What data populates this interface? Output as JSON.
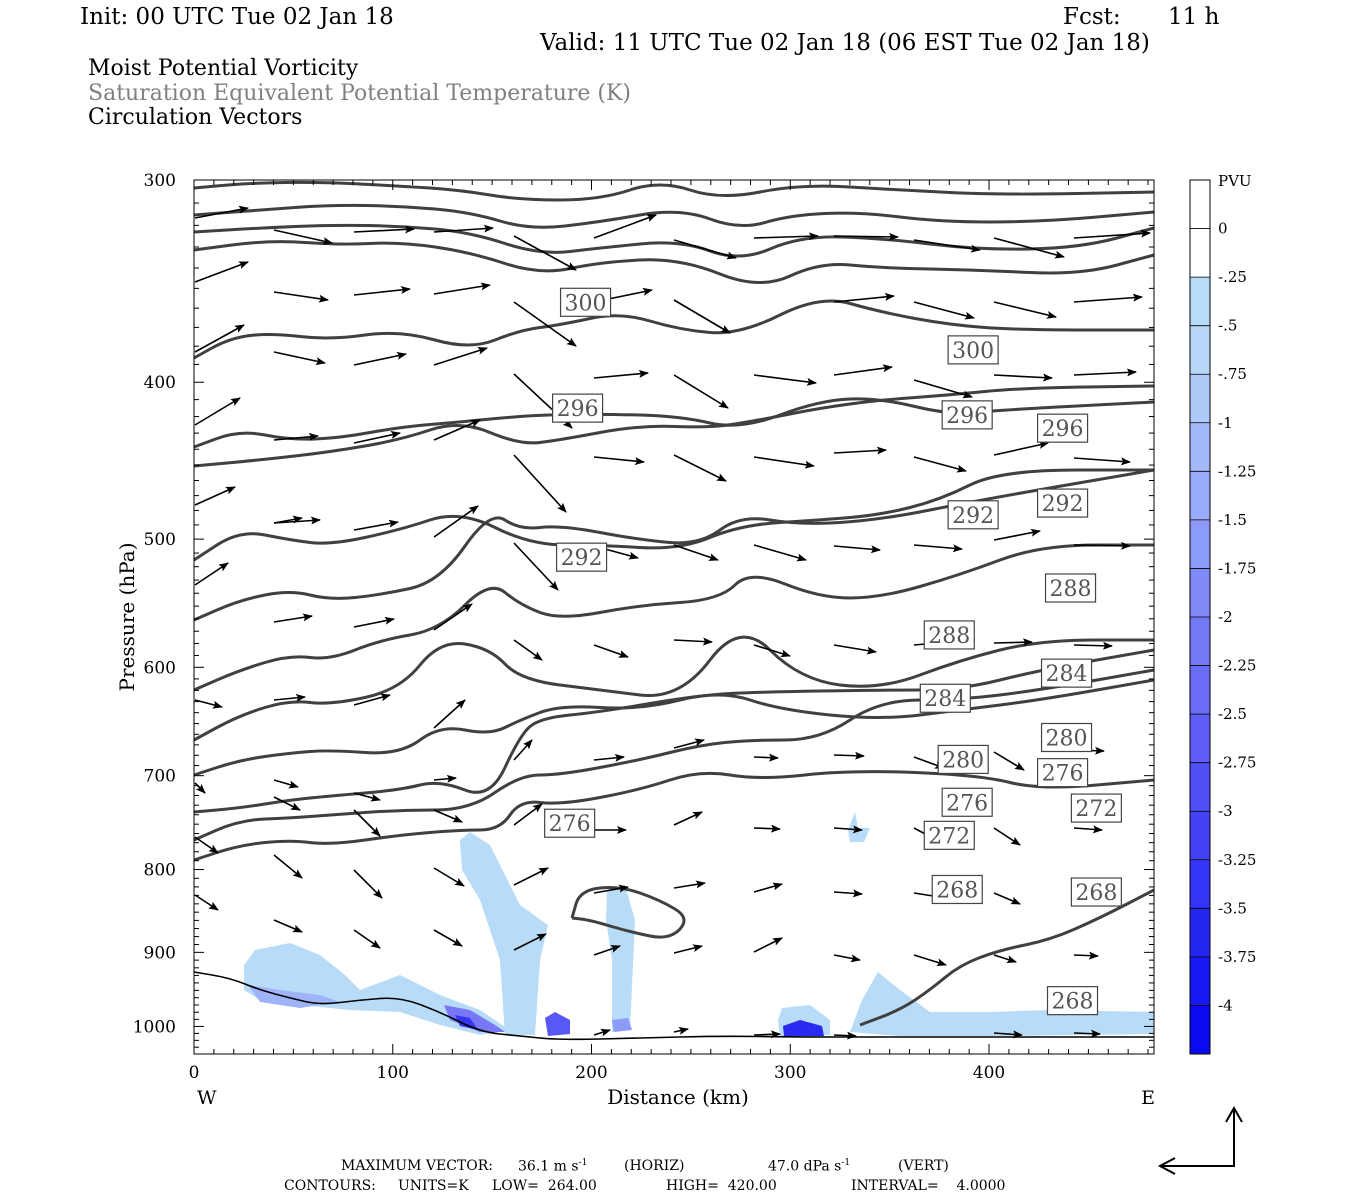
{
  "header": {
    "init": "Init: 00 UTC Tue 02 Jan 18",
    "fcst_label": "Fcst:",
    "fcst_value": "11 h",
    "valid": "Valid: 11 UTC Tue 02 Jan 18 (06 EST Tue 02 Jan 18)"
  },
  "fields": {
    "line1": "Moist Potential Vorticity",
    "line2": "Saturation Equivalent Potential Temperature (K)",
    "line3": "Circulation Vectors"
  },
  "colors": {
    "contour": "#404040",
    "pv_light": "#b8dcf8",
    "pv_dark": "#0a0af0"
  },
  "chart_data": {
    "type": "cross-section",
    "xlabel": "Distance (km)",
    "ylabel": "Pressure (hPa)",
    "x_ticks": [
      "0",
      "100",
      "200",
      "300",
      "400"
    ],
    "y_ticks": [
      "300",
      "400",
      "500",
      "600",
      "700",
      "800",
      "900",
      "1000"
    ],
    "xlim": [
      0,
      483
    ],
    "ylim": [
      300,
      1040
    ],
    "y_scale": "log",
    "west_label": "W",
    "east_label": "E",
    "colorbar": {
      "title": "PVU",
      "labels": [
        "0",
        "-.25",
        "-.5",
        "-.75",
        "-1",
        "-1.25",
        "-1.5",
        "-1.75",
        "-2",
        "-2.25",
        "-2.5",
        "-2.75",
        "-3",
        "-3.25",
        "-3.5",
        "-3.75",
        "-4"
      ],
      "colors": [
        "#ffffff",
        "#ffffff",
        "#b8dcf8",
        "#b8d6f8",
        "#aec8f8",
        "#a4baf8",
        "#98aaf8",
        "#8c9af8",
        "#808af8",
        "#747af6",
        "#6a6cf6",
        "#5e5ef6",
        "#5050f6",
        "#4242f4",
        "#3434f4",
        "#2626f2",
        "#1818f2",
        "#0a0af0"
      ]
    },
    "contour_labels": [
      {
        "text": "300",
        "x": 197,
        "p": 357
      },
      {
        "text": "300",
        "x": 392,
        "p": 382
      },
      {
        "text": "296",
        "x": 193,
        "p": 415
      },
      {
        "text": "296",
        "x": 389,
        "p": 419
      },
      {
        "text": "296",
        "x": 437,
        "p": 427
      },
      {
        "text": "292",
        "x": 195,
        "p": 513
      },
      {
        "text": "292",
        "x": 392,
        "p": 483
      },
      {
        "text": "292",
        "x": 437,
        "p": 475
      },
      {
        "text": "288",
        "x": 441,
        "p": 536
      },
      {
        "text": "288",
        "x": 380,
        "p": 573
      },
      {
        "text": "284",
        "x": 439,
        "p": 605
      },
      {
        "text": "284",
        "x": 378,
        "p": 627
      },
      {
        "text": "280",
        "x": 439,
        "p": 663
      },
      {
        "text": "280",
        "x": 387,
        "p": 684
      },
      {
        "text": "276",
        "x": 437,
        "p": 697
      },
      {
        "text": "276",
        "x": 389,
        "p": 727
      },
      {
        "text": "276",
        "x": 189,
        "p": 749
      },
      {
        "text": "272",
        "x": 454,
        "p": 733
      },
      {
        "text": "272",
        "x": 380,
        "p": 762
      },
      {
        "text": "268",
        "x": 384,
        "p": 823
      },
      {
        "text": "268",
        "x": 454,
        "p": 826
      },
      {
        "text": "268",
        "x": 442,
        "p": 964
      }
    ],
    "footer": {
      "max_vector_label": "MAXIMUM VECTOR:",
      "max_vector_horiz": "36.1 m s",
      "horiz_tag": "(HORIZ)",
      "max_vector_vert": "47.0 dPa s",
      "vert_tag": "(VERT)",
      "exponent": "-1",
      "contours_label": "CONTOURS:",
      "units": "UNITS=K",
      "low": "LOW=  264.00",
      "high": "HIGH=  420.00",
      "interval": "INTERVAL=    4.0000"
    }
  }
}
